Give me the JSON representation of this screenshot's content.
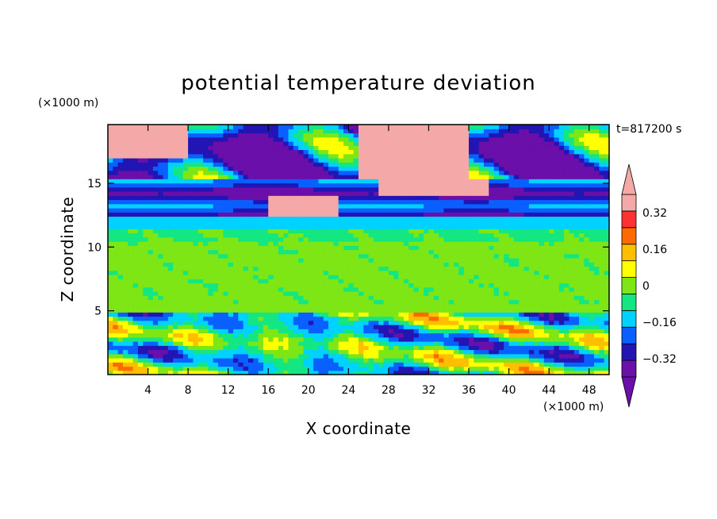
{
  "chart_data": {
    "type": "heatmap",
    "title": "potential temperature deviation",
    "xlabel": "X coordinate",
    "ylabel": "Z coordinate",
    "x_unit": "(×1000 m)",
    "y_unit": "(×1000 m)",
    "time_label": "t=817200 s",
    "xlim": [
      0,
      50
    ],
    "ylim": [
      0,
      19.6
    ],
    "x_ticks": [
      4,
      8,
      12,
      16,
      20,
      24,
      28,
      32,
      36,
      40,
      44,
      48
    ],
    "y_ticks": [
      5,
      10,
      15
    ],
    "colorbar": {
      "levels": [
        -0.4,
        -0.32,
        -0.24,
        -0.16,
        -0.08,
        0,
        0.08,
        0.16,
        0.24,
        0.32,
        0.4
      ],
      "labeled_levels": [
        0.32,
        0.16,
        0,
        -0.16,
        -0.32
      ],
      "labels": [
        "0.32",
        "0.16",
        "0",
        "−0.16",
        "−0.32"
      ],
      "colors": [
        "#6a0faa",
        "#2314b4",
        "#0a5fff",
        "#00d2ff",
        "#14e682",
        "#7de614",
        "#ffff00",
        "#ffbf00",
        "#ff6a00",
        "#ff3232",
        "#f5a8a8"
      ],
      "min_color": "#6a0faa",
      "max_color": "#f5a8a8",
      "extend": "both"
    },
    "layers": [
      {
        "z_range": [
          0,
          5
        ],
        "description_value": "turbulent boundary layer, values -0.4 to >0.4"
      },
      {
        "z_range": [
          5,
          12
        ],
        "description_value": "near zero, 0 to 0.08"
      },
      {
        "z_range": [
          12,
          15.5
        ],
        "description_value": "-0.4 to -0.16 with warm anomalies"
      },
      {
        "z_range": [
          15.5,
          19.6
        ],
        "description_value": "-0.4 to >0.4 with large warm patches"
      }
    ]
  }
}
